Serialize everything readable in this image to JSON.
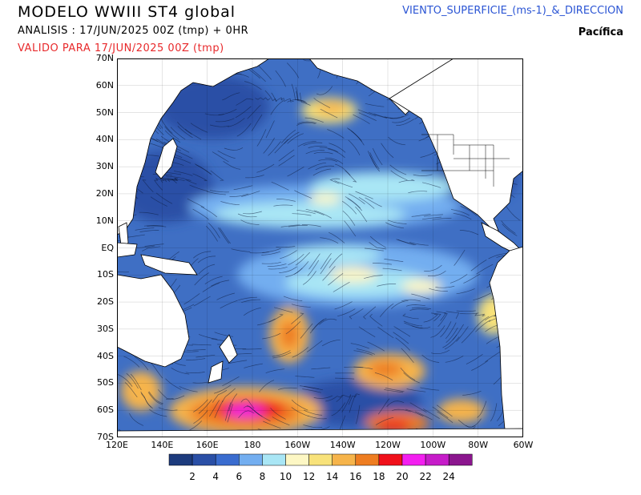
{
  "header": {
    "title": "MODELO WWIII ST4 global",
    "analysis": "ANALISIS : 17/JUN/2025 00Z  (tmp) + 0HR",
    "valid": "VALIDO PARA  17/JUN/2025 00Z  (tmp)",
    "field": "VIENTO_SUPERFICIE_(ms-1)_&_DIRECCION",
    "region": "Pacífica"
  },
  "map": {
    "lat_labels": [
      "70N",
      "60N",
      "50N",
      "40N",
      "30N",
      "20N",
      "10N",
      "EQ",
      "10S",
      "20S",
      "30S",
      "40S",
      "50S",
      "60S",
      "70S"
    ],
    "lon_labels": [
      "120E",
      "140E",
      "160E",
      "180",
      "160W",
      "140W",
      "120W",
      "100W",
      "80W",
      "60W"
    ],
    "ocean_color": "#3f6fc4",
    "land_color": "#ffffff"
  },
  "legend": {
    "unit": "ms-1",
    "colors": [
      "#1d3b7d",
      "#2a4fa6",
      "#3a6ccf",
      "#73aef0",
      "#a9e6f5",
      "#fdf7c4",
      "#f8e27a",
      "#f6b44b",
      "#ee7d21",
      "#f0101a",
      "#f31ff0",
      "#c61cc9",
      "#8b168e"
    ],
    "tick_labels": [
      "2",
      "4",
      "6",
      "8",
      "10",
      "12",
      "14",
      "16",
      "18",
      "20",
      "22",
      "24"
    ]
  }
}
